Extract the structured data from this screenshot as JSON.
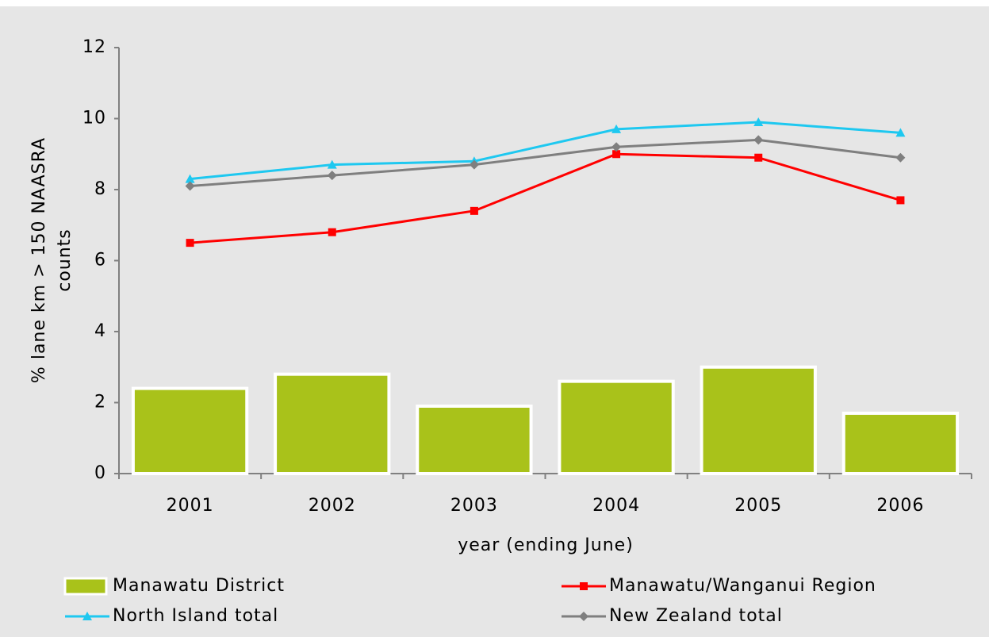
{
  "chart_data": {
    "type": "combo",
    "categories": [
      "2001",
      "2002",
      "2003",
      "2004",
      "2005",
      "2006"
    ],
    "x_label": "year (ending June)",
    "y_label": [
      "% lane km > 150 NAASRA",
      "counts"
    ],
    "ylim": [
      0,
      12
    ],
    "yticks": [
      0,
      2,
      4,
      6,
      8,
      10,
      12
    ],
    "grid": false,
    "series": [
      {
        "name": "Manawatu District",
        "type": "bar",
        "color": "#a9c21a",
        "values": [
          2.4,
          2.8,
          1.9,
          2.6,
          3.0,
          1.7
        ]
      },
      {
        "name": "Manawatu/Wanganui Region",
        "type": "line",
        "marker": "square",
        "color": "#ff0000",
        "values": [
          6.5,
          6.8,
          7.4,
          9.0,
          8.9,
          7.7
        ]
      },
      {
        "name": "North Island total",
        "type": "line",
        "marker": "triangle",
        "color": "#1ec8f0",
        "values": [
          8.3,
          8.7,
          8.8,
          9.7,
          9.9,
          9.6
        ]
      },
      {
        "name": "New Zealand total",
        "type": "line",
        "marker": "diamond",
        "color": "#7f7f7f",
        "values": [
          8.1,
          8.4,
          8.7,
          9.2,
          9.4,
          8.9
        ]
      }
    ]
  }
}
